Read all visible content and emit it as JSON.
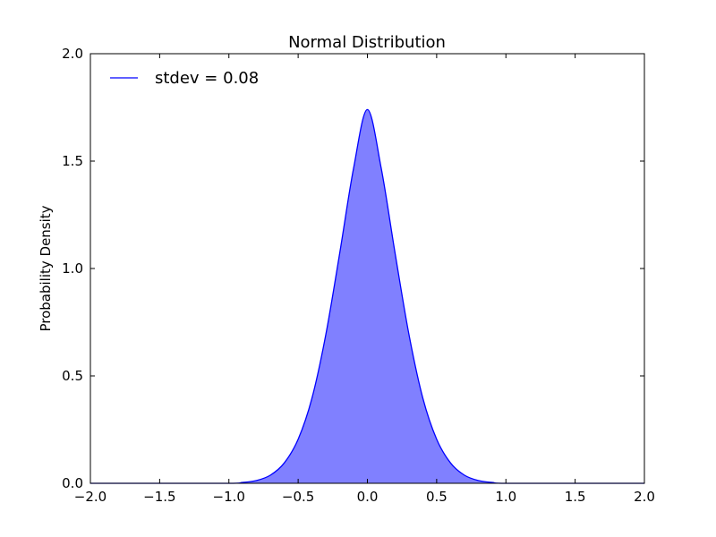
{
  "chart_data": {
    "type": "area",
    "title": "Normal Distribution",
    "xlabel": "",
    "ylabel": "Probability Density",
    "xlim": [
      -2.0,
      2.0
    ],
    "ylim": [
      0.0,
      2.0
    ],
    "x_ticks": [
      -2.0,
      -1.5,
      -1.0,
      -0.5,
      0.0,
      0.5,
      1.0,
      1.5,
      2.0
    ],
    "x_tick_labels": [
      "−2.0",
      "−1.5",
      "−1.0",
      "−0.5",
      "0.0",
      "0.5",
      "1.0",
      "1.5",
      "2.0"
    ],
    "y_ticks": [
      0.0,
      0.5,
      1.0,
      1.5,
      2.0
    ],
    "y_tick_labels": [
      "0.0",
      "0.5",
      "1.0",
      "1.5",
      "2.0"
    ],
    "grid": false,
    "legend_position": "top-left",
    "series": [
      {
        "name": "stdev = 0.08",
        "color": "#0000ff",
        "fill_color": "#8080ff",
        "x": [
          -2.0,
          -1.5,
          -1.0,
          -0.9,
          -0.8,
          -0.7,
          -0.6,
          -0.5,
          -0.4,
          -0.3,
          -0.2,
          -0.1,
          0.0,
          0.1,
          0.2,
          0.3,
          0.4,
          0.5,
          0.6,
          0.7,
          0.8,
          0.9,
          1.0,
          1.5,
          2.0
        ],
        "y": [
          0.0,
          0.0,
          0.0,
          0.004,
          0.013,
          0.038,
          0.095,
          0.205,
          0.397,
          0.693,
          1.071,
          1.466,
          1.74,
          1.466,
          1.071,
          0.693,
          0.397,
          0.205,
          0.095,
          0.038,
          0.013,
          0.004,
          0.0,
          0.0,
          0.0
        ]
      }
    ]
  }
}
